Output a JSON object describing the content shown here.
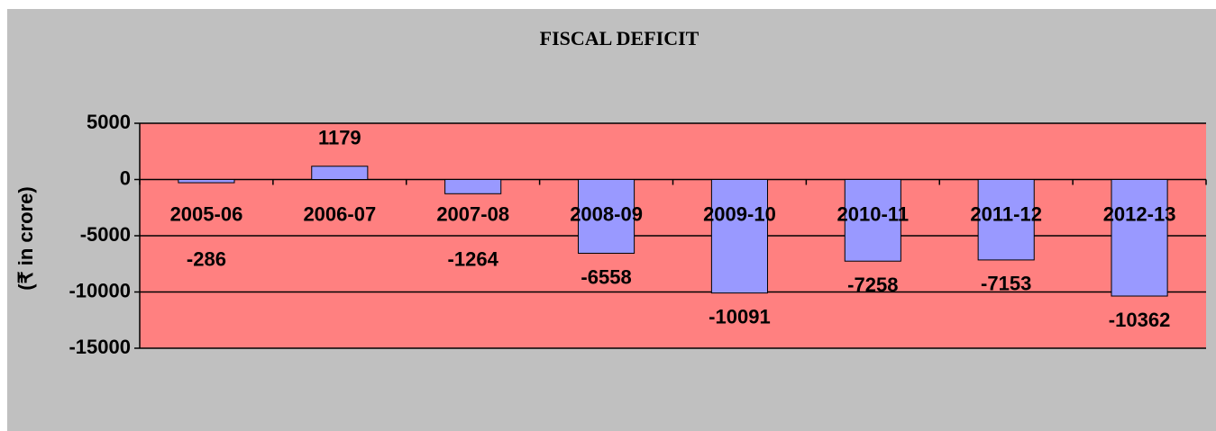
{
  "chart_data": {
    "type": "bar",
    "title": "FISCAL DEFICIT",
    "y_label": "(₹ in crore)",
    "categories": [
      "2005-06",
      "2006-07",
      "2007-08",
      "2008-09",
      "2009-10",
      "2010-11",
      "2011-12",
      "2012-13"
    ],
    "values": [
      -286,
      1179,
      -1264,
      -6558,
      -10091,
      -7258,
      -7153,
      -10362
    ],
    "color": "#9999ff",
    "plot_color": "#ff8080",
    "ylim": [
      -15000,
      5000
    ],
    "yticks": [
      -15000,
      -10000,
      -5000,
      0,
      5000
    ],
    "grid": true
  }
}
